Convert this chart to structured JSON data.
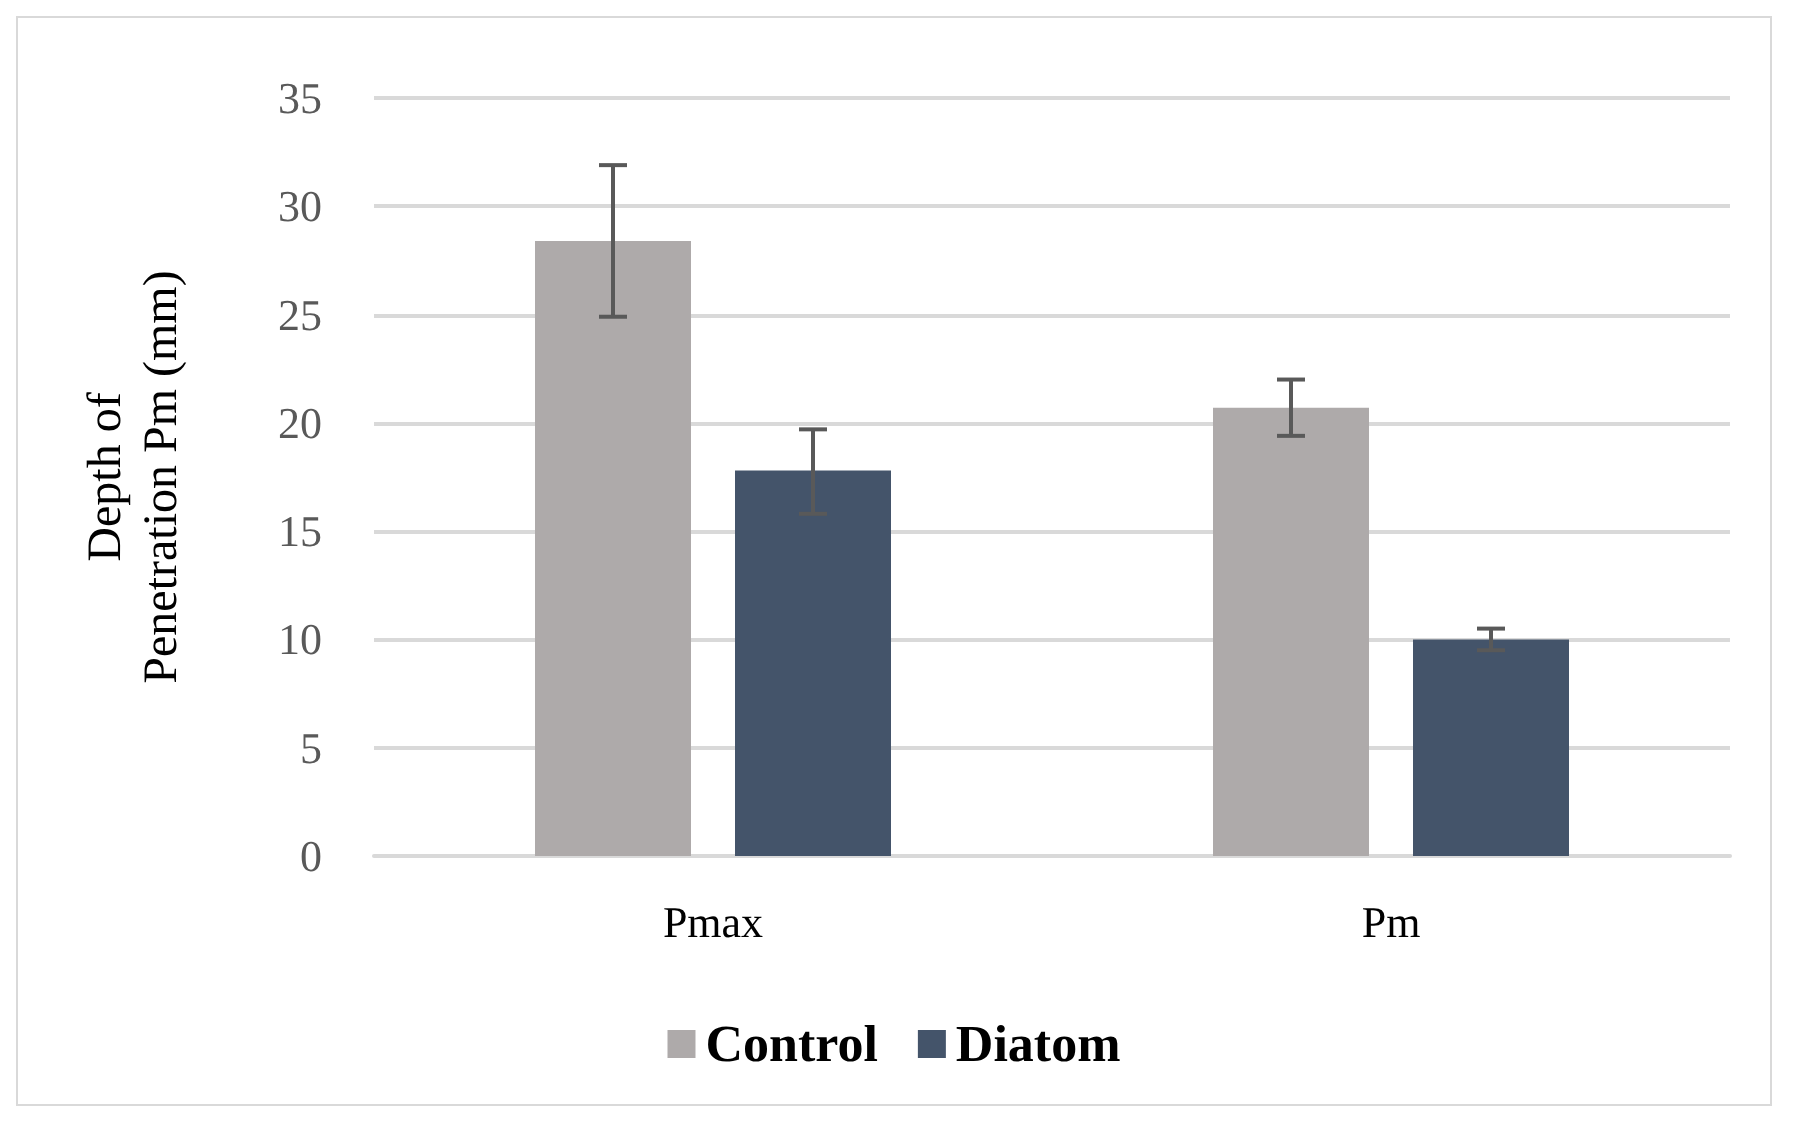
{
  "chart_data": {
    "type": "bar",
    "ylabel": "Depth of\nPenetration Pm (mm)",
    "categories": [
      "Pmax",
      "Pm"
    ],
    "series": [
      {
        "name": "Control",
        "color": "#aeaaaa",
        "values": [
          28.4,
          20.7
        ],
        "errors": [
          [
            24.9,
            31.9
          ],
          [
            19.4,
            22.0
          ]
        ]
      },
      {
        "name": "Diatom",
        "color": "#44546a",
        "values": [
          17.8,
          10.0
        ],
        "errors": [
          [
            15.8,
            19.7
          ],
          [
            9.5,
            10.5
          ]
        ]
      }
    ],
    "ylim": [
      0,
      35
    ],
    "yticks": [
      0,
      5,
      10,
      15,
      20,
      25,
      30,
      35
    ],
    "grid": "y",
    "legend": "bottom"
  }
}
